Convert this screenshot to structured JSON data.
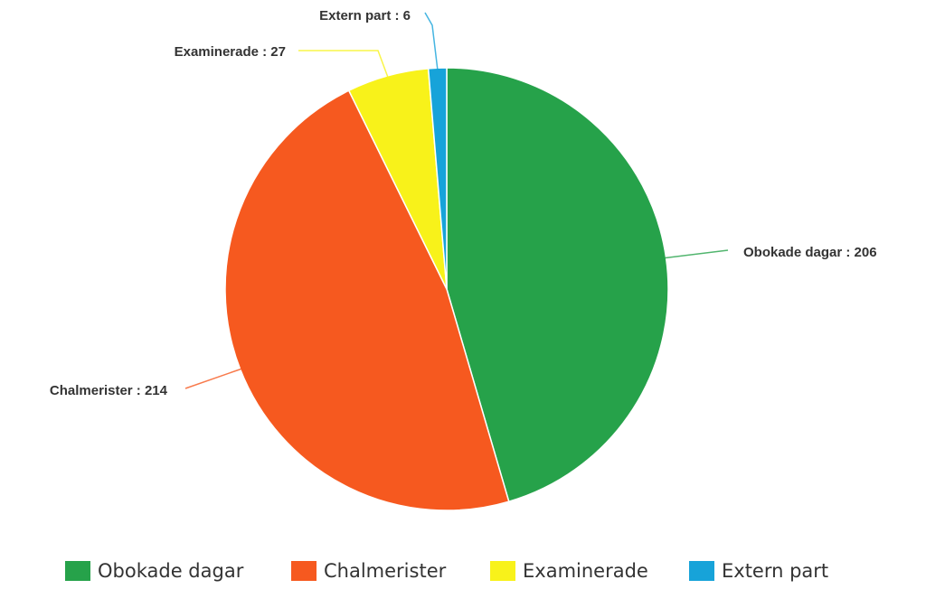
{
  "chart_data": {
    "type": "pie",
    "categories": [
      "Obokade dagar",
      "Chalmerister",
      "Examinerade",
      "Extern part"
    ],
    "values": [
      206,
      214,
      27,
      6
    ],
    "value_labels": [
      "Obokade dagar : 206",
      "Chalmerister : 214",
      "Examinerade : 27",
      "Extern part : 6"
    ],
    "colors": [
      "#26a24a",
      "#f6591f",
      "#f8f21a",
      "#17a3d9"
    ],
    "legend": "bottom"
  }
}
